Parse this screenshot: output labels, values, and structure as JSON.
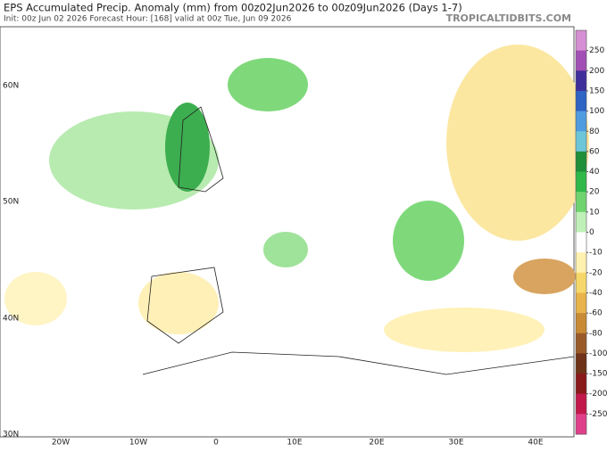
{
  "header": {
    "title": "EPS Accumulated Precip. Anomaly (mm) from 00z02Jun2026 to 00z09Jun2026 (Days 1-7)",
    "subtitle": "Init: 00z Jun 02 2026   Forecast Hour: [168]   valid at 00z Tue, Jun 09 2026",
    "site": "TROPICALTIDBITS.COM"
  },
  "map": {
    "lat_labels": [
      "60N",
      "50N",
      "40N",
      "30N"
    ],
    "lon_labels": [
      "20W",
      "10W",
      "0",
      "10E",
      "20E",
      "30E",
      "40E"
    ]
  },
  "colorbar": {
    "ticks": [
      250,
      200,
      150,
      100,
      80,
      60,
      40,
      20,
      10,
      0,
      -10,
      -20,
      -40,
      -60,
      -80,
      -100,
      -150,
      -200,
      -250
    ],
    "colors": [
      "#d58fd3",
      "#a24fb5",
      "#3f2f9c",
      "#2f63c4",
      "#4f9be0",
      "#6cc6d8",
      "#1f8f3a",
      "#2fb84a",
      "#6fd46f",
      "#bff0b8",
      "#ffffff",
      "#fff1b0",
      "#f6d86a",
      "#e8b34a",
      "#c98a35",
      "#9a5a28",
      "#6e3318",
      "#8a1a1a",
      "#c2194a",
      "#e0408a"
    ]
  }
}
